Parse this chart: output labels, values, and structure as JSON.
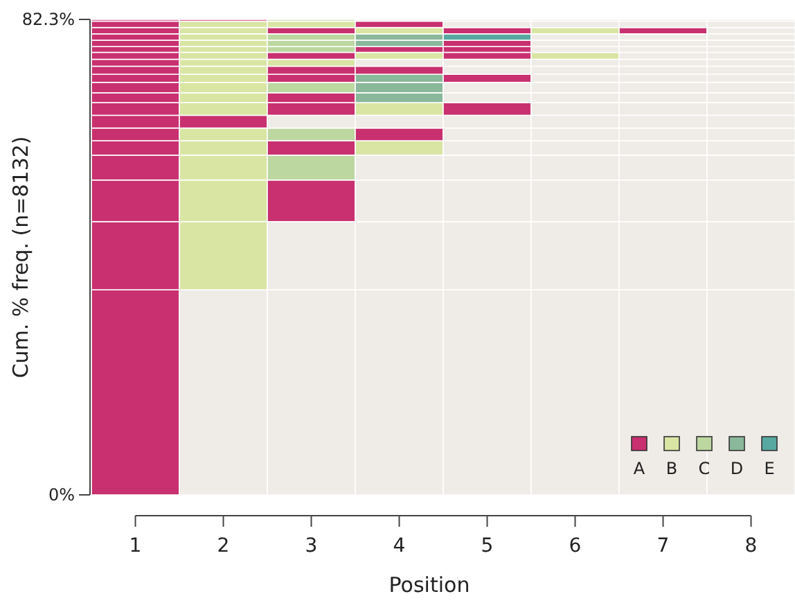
{
  "chart_data": {
    "type": "bar",
    "stacked": true,
    "categories": [
      "1",
      "2",
      "3",
      "4",
      "5",
      "6",
      "7",
      "8"
    ],
    "xlabel": "Position",
    "ylabel": "Cum. % freq. (n=8132)",
    "ylim": [
      0,
      82.3
    ],
    "yticks": [
      {
        "value": 0,
        "label": "0%"
      },
      {
        "value": 82.3,
        "label": "82.3%"
      }
    ],
    "legend": "bottom right",
    "grid": false,
    "series": [
      {
        "values": [
          35.5,
          35.5,
          35.5,
          35.5,
          35.5,
          35.5,
          35.5,
          35.5
        ],
        "colors": [
          "#c8306f",
          "#efebe7",
          "#efebe7",
          "#efebe7",
          "#efebe7",
          "#efebe7",
          "#efebe7",
          "#efebe7"
        ]
      },
      {
        "values": [
          11.8,
          11.8,
          11.8,
          11.8,
          11.8,
          11.8,
          11.8,
          11.8
        ],
        "colors": [
          "#c8306f",
          "#d9e5a3",
          "#efebe7",
          "#efebe7",
          "#efebe7",
          "#efebe7",
          "#efebe7",
          "#efebe7"
        ]
      },
      {
        "values": [
          7.2,
          7.2,
          7.2,
          7.2,
          7.2,
          7.2,
          7.2,
          7.2
        ],
        "colors": [
          "#c8306f",
          "#d9e5a3",
          "#c8306f",
          "#efebe7",
          "#efebe7",
          "#efebe7",
          "#efebe7",
          "#efebe7"
        ]
      },
      {
        "values": [
          4.3,
          4.3,
          4.3,
          4.3,
          4.3,
          4.3,
          4.3,
          4.3
        ],
        "colors": [
          "#c8306f",
          "#d9e5a3",
          "#bcd7a0",
          "#efebe7",
          "#efebe7",
          "#efebe7",
          "#efebe7",
          "#efebe7"
        ]
      },
      {
        "values": [
          2.5,
          2.5,
          2.5,
          2.5,
          2.5,
          2.5,
          2.5,
          2.5
        ],
        "colors": [
          "#c8306f",
          "#d9e5a3",
          "#c8306f",
          "#d9e5a3",
          "#efebe7",
          "#efebe7",
          "#efebe7",
          "#efebe7"
        ]
      },
      {
        "values": [
          2.2,
          2.2,
          2.2,
          2.2,
          2.2,
          2.2,
          2.2,
          2.2
        ],
        "colors": [
          "#c8306f",
          "#d9e5a3",
          "#bcd7a0",
          "#c8306f",
          "#efebe7",
          "#efebe7",
          "#efebe7",
          "#efebe7"
        ]
      },
      {
        "values": [
          2.2,
          2.2,
          2.2,
          2.2,
          2.2,
          2.2,
          2.2,
          2.2
        ],
        "colors": [
          "#c8306f",
          "#c8306f",
          "#efebe7",
          "#efebe7",
          "#efebe7",
          "#efebe7",
          "#efebe7",
          "#efebe7"
        ]
      },
      {
        "values": [
          2.2,
          2.2,
          2.2,
          2.2,
          2.2,
          2.2,
          2.2,
          2.2
        ],
        "colors": [
          "#c8306f",
          "#d9e5a3",
          "#c8306f",
          "#d9e5a3",
          "#c8306f",
          "#efebe7",
          "#efebe7",
          "#efebe7"
        ]
      },
      {
        "values": [
          1.7,
          1.7,
          1.7,
          1.7,
          1.7,
          1.7,
          1.7,
          1.7
        ],
        "colors": [
          "#c8306f",
          "#d9e5a3",
          "#c8306f",
          "#8ab89a",
          "#efebe7",
          "#efebe7",
          "#efebe7",
          "#efebe7"
        ]
      },
      {
        "values": [
          1.8,
          1.8,
          1.8,
          1.8,
          1.8,
          1.8,
          1.8,
          1.8
        ],
        "colors": [
          "#c8306f",
          "#d9e5a3",
          "#bcd7a0",
          "#8ab89a",
          "#efebe7",
          "#efebe7",
          "#efebe7",
          "#efebe7"
        ]
      },
      {
        "values": [
          1.4,
          1.4,
          1.4,
          1.4,
          1.4,
          1.4,
          1.4,
          1.4
        ],
        "colors": [
          "#c8306f",
          "#d9e5a3",
          "#c8306f",
          "#8ab89a",
          "#c8306f",
          "#efebe7",
          "#efebe7",
          "#efebe7"
        ]
      },
      {
        "values": [
          1.4,
          1.4,
          1.4,
          1.4,
          1.4,
          1.4,
          1.4,
          1.4
        ],
        "colors": [
          "#c8306f",
          "#d9e5a3",
          "#c8306f",
          "#c8306f",
          "#efebe7",
          "#efebe7",
          "#efebe7",
          "#efebe7"
        ]
      },
      {
        "values": [
          1.2,
          1.2,
          1.2,
          1.2,
          1.2,
          1.2,
          1.2,
          1.2
        ],
        "colors": [
          "#c8306f",
          "#d9e5a3",
          "#d9e5a3",
          "#efebe7",
          "#efebe7",
          "#efebe7",
          "#efebe7",
          "#efebe7"
        ]
      },
      {
        "values": [
          1.2,
          1.2,
          1.2,
          1.2,
          1.2,
          1.2,
          1.2,
          1.2
        ],
        "colors": [
          "#c8306f",
          "#d9e5a3",
          "#c8306f",
          "#d9e5a3",
          "#c8306f",
          "#d9e5a3",
          "#efebe7",
          "#efebe7"
        ]
      },
      {
        "values": [
          1.0,
          1.0,
          1.0,
          1.0,
          1.0,
          1.0,
          1.0,
          1.0
        ],
        "colors": [
          "#c8306f",
          "#d9e5a3",
          "#bcd7a0",
          "#c8306f",
          "#c8306f",
          "#efebe7",
          "#efebe7",
          "#efebe7"
        ]
      },
      {
        "values": [
          1.1,
          1.1,
          1.1,
          1.1,
          1.1,
          1.1,
          1.1,
          1.1
        ],
        "colors": [
          "#c8306f",
          "#d9e5a3",
          "#bcd7a0",
          "#8ab89a",
          "#c8306f",
          "#efebe7",
          "#efebe7",
          "#efebe7"
        ]
      },
      {
        "values": [
          1.1,
          1.1,
          1.1,
          1.1,
          1.1,
          1.1,
          1.1,
          1.1
        ],
        "colors": [
          "#c8306f",
          "#d9e5a3",
          "#bcd7a0",
          "#8ab89a",
          "#56a8a0",
          "#efebe7",
          "#efebe7",
          "#efebe7"
        ]
      },
      {
        "values": [
          1.1,
          1.1,
          1.1,
          1.1,
          1.1,
          1.1,
          1.1,
          1.1
        ],
        "colors": [
          "#c8306f",
          "#d9e5a3",
          "#c8306f",
          "#d9e5a3",
          "#c8306f",
          "#d9e5a3",
          "#c8306f",
          "#efebe7"
        ]
      },
      {
        "values": [
          1.1,
          1.1,
          1.1,
          1.1,
          1.1,
          1.1,
          1.1,
          1.1
        ],
        "colors": [
          "#c8306f",
          "#d9e5a3",
          "#d9e5a3",
          "#c8306f",
          "#efebe7",
          "#efebe7",
          "#efebe7",
          "#efebe7"
        ]
      },
      {
        "values": [
          0.3,
          0.3,
          0.3,
          0.3,
          0.3,
          0.3,
          0.3,
          0.3
        ],
        "colors": [
          "#c8306f",
          "#c8306f",
          "#bcd7a0",
          "#efebe7",
          "#efebe7",
          "#efebe7",
          "#efebe7",
          "#efebe7"
        ]
      },
      {
        "name": "A",
        "color": "#c8306f",
        "values": [
          null,
          null,
          null,
          null,
          null,
          null,
          null,
          null
        ]
      },
      {
        "name": "B",
        "color": "#d9e5a3",
        "values": [
          null,
          null,
          null,
          null,
          null,
          null,
          null,
          null
        ]
      },
      {
        "name": "C",
        "color": "#bcd7a0",
        "values": [
          null,
          null,
          null,
          null,
          null,
          null,
          null,
          null
        ]
      },
      {
        "name": "D",
        "color": "#8ab89a",
        "values": [
          null,
          null,
          null,
          null,
          null,
          null,
          null,
          null
        ]
      },
      {
        "name": "E",
        "color": "#56a8a0",
        "values": [
          null,
          null,
          null,
          null,
          null,
          null,
          null,
          null
        ]
      }
    ]
  }
}
